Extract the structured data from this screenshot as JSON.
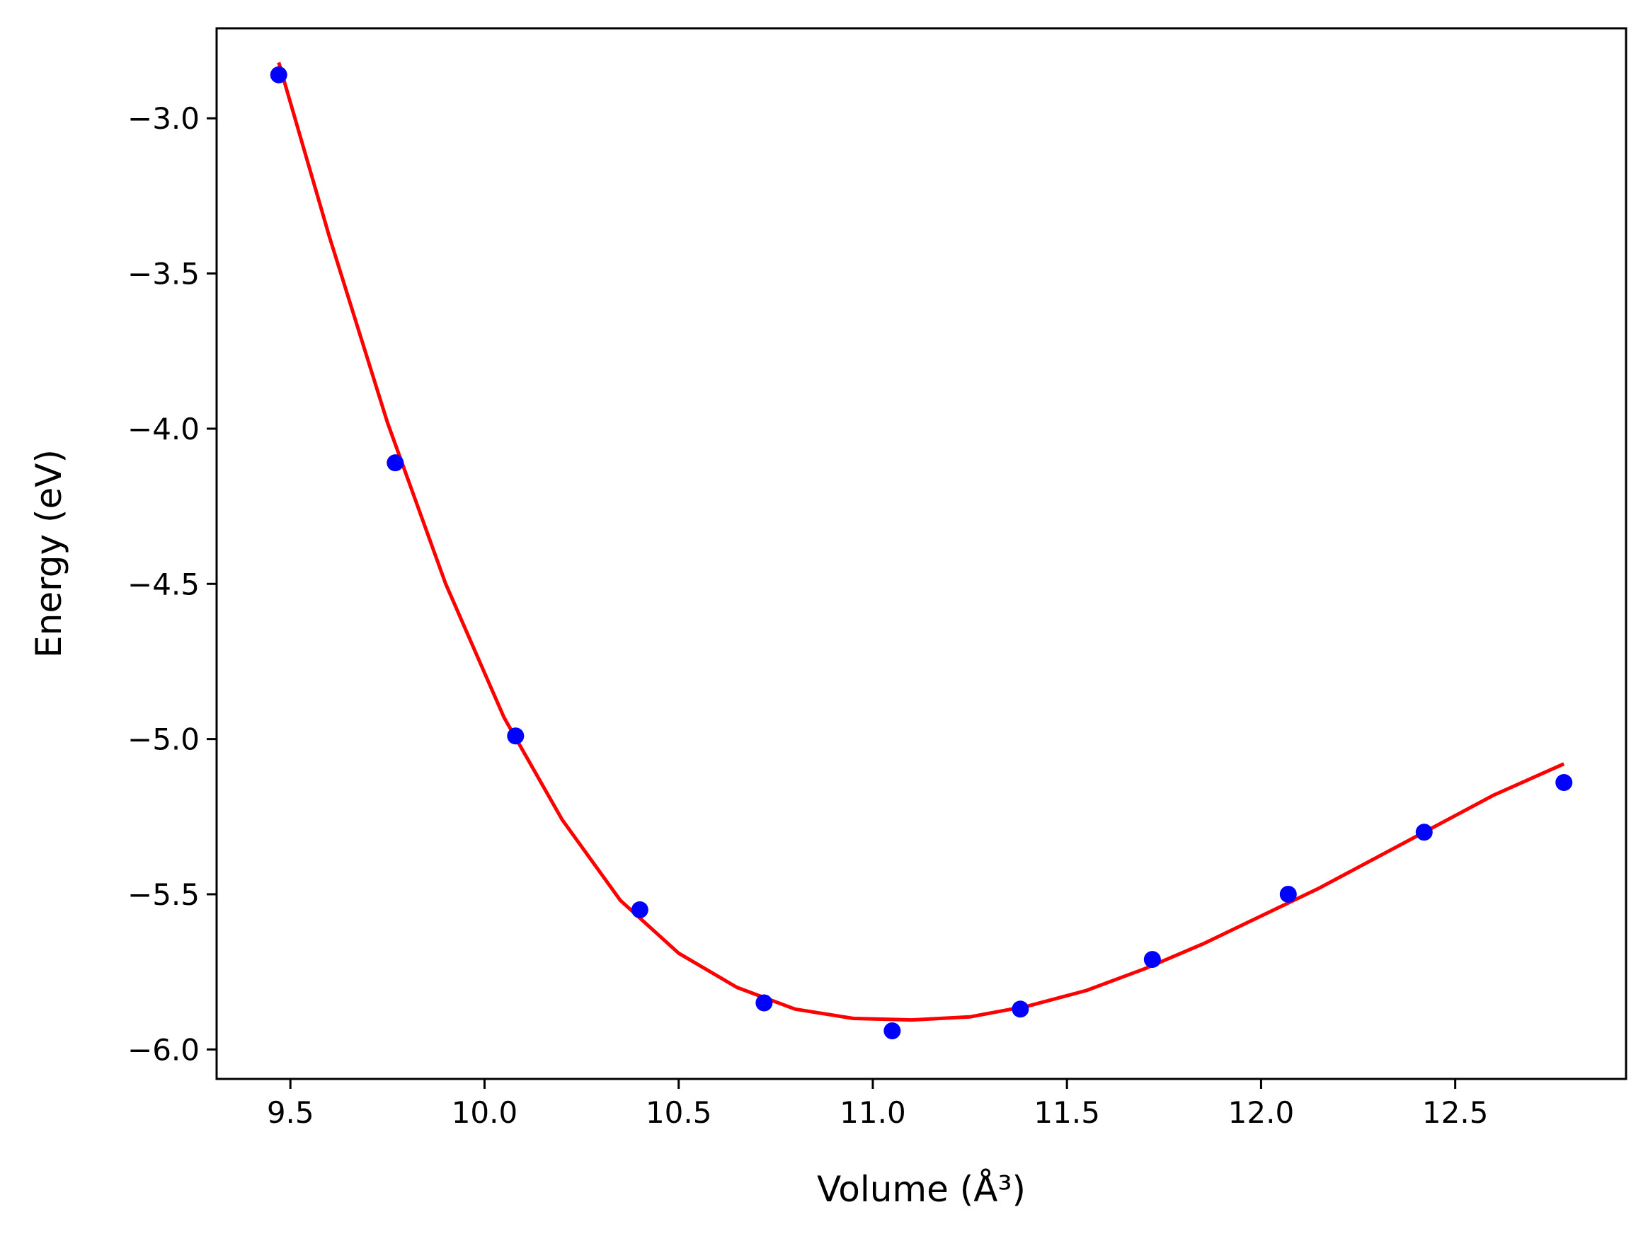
{
  "chart_data": {
    "type": "scatter",
    "title": "",
    "xlabel": "Volume (Å³)",
    "ylabel": "Energy (eV)",
    "xlim": [
      9.31,
      12.94
    ],
    "ylim": [
      -6.095,
      -2.71
    ],
    "xticks": [
      9.5,
      10.0,
      10.5,
      11.0,
      11.5,
      12.0,
      12.5
    ],
    "xtick_labels": [
      "9.5",
      "10.0",
      "10.5",
      "11.0",
      "11.5",
      "12.0",
      "12.5"
    ],
    "yticks": [
      -3.0,
      -3.5,
      -4.0,
      -4.5,
      -5.0,
      -5.5,
      -6.0
    ],
    "ytick_labels": [
      "−3.0",
      "−3.5",
      "−4.0",
      "−4.5",
      "−5.0",
      "−5.5",
      "−6.0"
    ],
    "grid": false,
    "series": [
      {
        "kind": "scatter",
        "color": "#0000ff",
        "points": [
          {
            "x": 9.47,
            "y": -2.86
          },
          {
            "x": 9.77,
            "y": -4.11
          },
          {
            "x": 10.08,
            "y": -4.99
          },
          {
            "x": 10.4,
            "y": -5.55
          },
          {
            "x": 10.72,
            "y": -5.85
          },
          {
            "x": 11.05,
            "y": -5.94
          },
          {
            "x": 11.38,
            "y": -5.87
          },
          {
            "x": 11.72,
            "y": -5.71
          },
          {
            "x": 12.07,
            "y": -5.5
          },
          {
            "x": 12.42,
            "y": -5.3
          },
          {
            "x": 12.78,
            "y": -5.14
          }
        ]
      },
      {
        "kind": "line",
        "color": "#ff0000",
        "points": [
          {
            "x": 9.47,
            "y": -2.82
          },
          {
            "x": 9.6,
            "y": -3.38
          },
          {
            "x": 9.75,
            "y": -3.98
          },
          {
            "x": 9.9,
            "y": -4.5
          },
          {
            "x": 10.05,
            "y": -4.93
          },
          {
            "x": 10.2,
            "y": -5.26
          },
          {
            "x": 10.35,
            "y": -5.52
          },
          {
            "x": 10.5,
            "y": -5.69
          },
          {
            "x": 10.65,
            "y": -5.8
          },
          {
            "x": 10.8,
            "y": -5.87
          },
          {
            "x": 10.95,
            "y": -5.9
          },
          {
            "x": 11.1,
            "y": -5.905
          },
          {
            "x": 11.25,
            "y": -5.895
          },
          {
            "x": 11.4,
            "y": -5.86
          },
          {
            "x": 11.55,
            "y": -5.81
          },
          {
            "x": 11.7,
            "y": -5.74
          },
          {
            "x": 11.85,
            "y": -5.66
          },
          {
            "x": 12.0,
            "y": -5.57
          },
          {
            "x": 12.15,
            "y": -5.48
          },
          {
            "x": 12.3,
            "y": -5.38
          },
          {
            "x": 12.45,
            "y": -5.28
          },
          {
            "x": 12.6,
            "y": -5.18
          },
          {
            "x": 12.78,
            "y": -5.08
          }
        ]
      }
    ]
  }
}
